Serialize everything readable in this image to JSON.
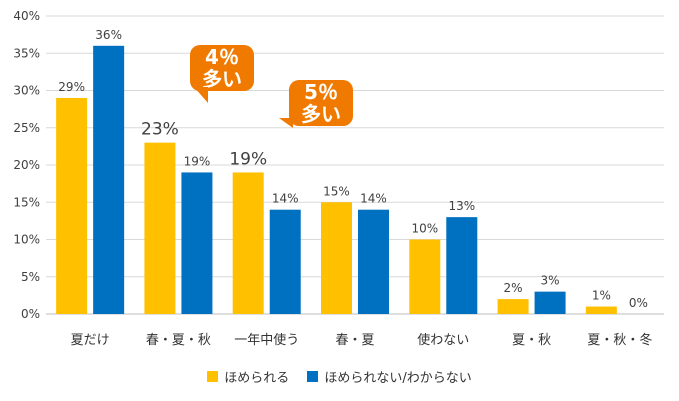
{
  "chart_data": {
    "type": "bar",
    "categories": [
      "夏だけ",
      "春・夏・秋",
      "一年中使う",
      "春・夏",
      "使わない",
      "夏・秋",
      "夏・秋・冬"
    ],
    "series": [
      {
        "name": "ほめられる",
        "values": [
          29,
          23,
          19,
          15,
          10,
          2,
          1
        ],
        "labels": [
          "29%",
          "23%",
          "19%",
          "15%",
          "10%",
          "2%",
          "1%"
        ]
      },
      {
        "name": "ほめられない/わからない",
        "values": [
          36,
          19,
          14,
          14,
          13,
          3,
          0
        ],
        "labels": [
          "36%",
          "19%",
          "14%",
          "14%",
          "13%",
          "3%",
          "0%"
        ]
      }
    ],
    "ylim": [
      0,
      40
    ],
    "yticks": [
      "0%",
      "5%",
      "10%",
      "15%",
      "20%",
      "25%",
      "30%",
      "35%",
      "40%"
    ],
    "grid": true,
    "legend_position": "bottom",
    "annotations": [
      {
        "line1": "4％",
        "line2": "多い",
        "category_index": 1
      },
      {
        "line1": "5％",
        "line2": "多い",
        "category_index": 2
      }
    ]
  },
  "colors": {
    "series1": "#FFC000",
    "series2": "#0070C0",
    "callout": "#F07A00",
    "grid": "#D9D9D9",
    "text": "#404040"
  }
}
